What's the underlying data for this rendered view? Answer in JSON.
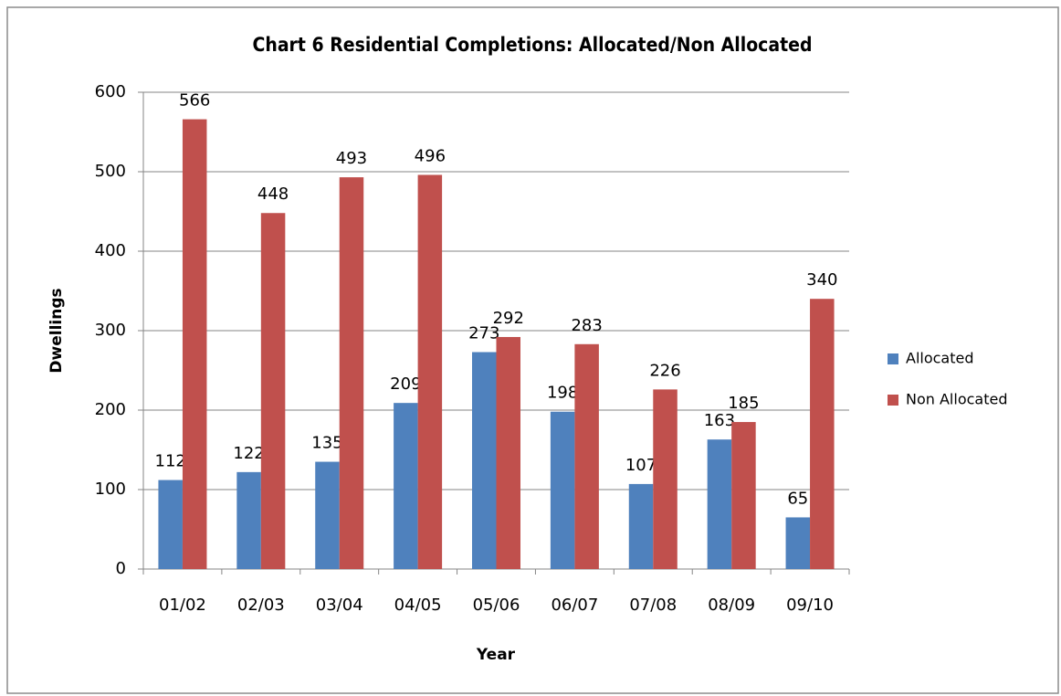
{
  "chart_data": {
    "type": "bar",
    "title": "Chart 6 Residential Completions: Allocated/Non Allocated",
    "x_label": "Year",
    "y_label": "Dwellings",
    "categories": [
      "01/02",
      "02/03",
      "03/04",
      "04/05",
      "05/06",
      "06/07",
      "07/08",
      "08/09",
      "09/10"
    ],
    "series": [
      {
        "name": "Allocated",
        "color": "#4f81bd",
        "values": [
          112,
          122,
          135,
          209,
          273,
          198,
          107,
          163,
          65
        ]
      },
      {
        "name": "Non Allocated",
        "color": "#c0504d",
        "values": [
          566,
          448,
          493,
          496,
          292,
          283,
          226,
          185,
          340
        ]
      }
    ],
    "ylim": [
      0,
      600
    ],
    "yticks": [
      0,
      100,
      200,
      300,
      400,
      500,
      600
    ],
    "grid": true,
    "legend": "right"
  }
}
